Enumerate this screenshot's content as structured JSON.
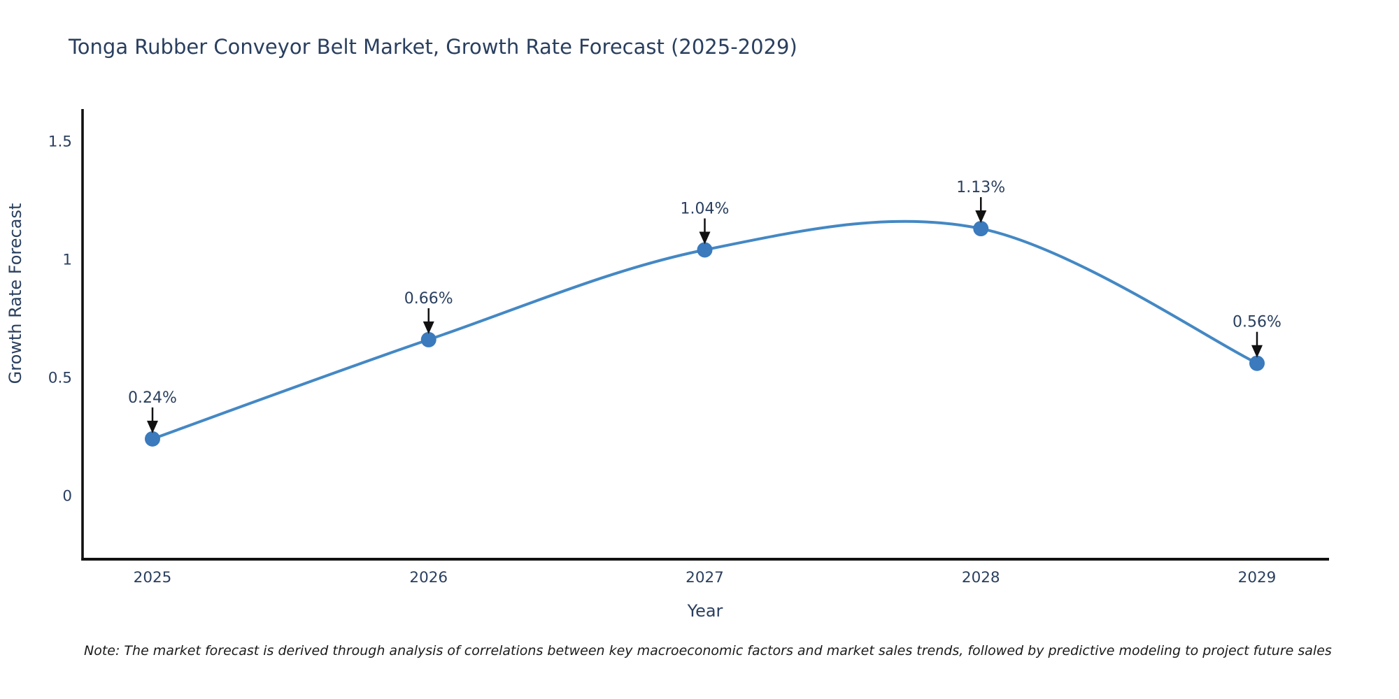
{
  "title": "Tonga Rubber Conveyor Belt Market, Growth Rate Forecast (2025-2029)",
  "note": "Note: The market forecast is derived through analysis of correlations between key macroeconomic factors and market sales trends, followed by predictive modeling to project future sales",
  "chart_data": {
    "type": "line",
    "title": "Tonga Rubber Conveyor Belt Market, Growth Rate Forecast (2025-2029)",
    "xlabel": "Year",
    "ylabel": "Growth Rate Forecast",
    "categories": [
      "2025",
      "2026",
      "2027",
      "2028",
      "2029"
    ],
    "series": [
      {
        "name": "Growth Rate Forecast",
        "values": [
          0.24,
          0.66,
          1.04,
          1.13,
          0.56
        ]
      }
    ],
    "point_labels": [
      "0.24%",
      "0.66%",
      "1.04%",
      "1.13%",
      "0.56%"
    ],
    "y_ticks": [
      0,
      0.5,
      1,
      1.5
    ],
    "y_tick_labels": [
      "0",
      "0.5",
      "1",
      "1.5"
    ],
    "ylim": [
      -0.29,
      1.64
    ],
    "grid": false,
    "legend": "none",
    "line_shape": "spline",
    "annotations_have_arrows": true,
    "colors": {
      "line": "#4488c4",
      "marker": "#3a7abd",
      "axis_line": "#111111",
      "arrow": "#111111",
      "text": "#2a3f5f",
      "background": "#ffffff"
    }
  }
}
